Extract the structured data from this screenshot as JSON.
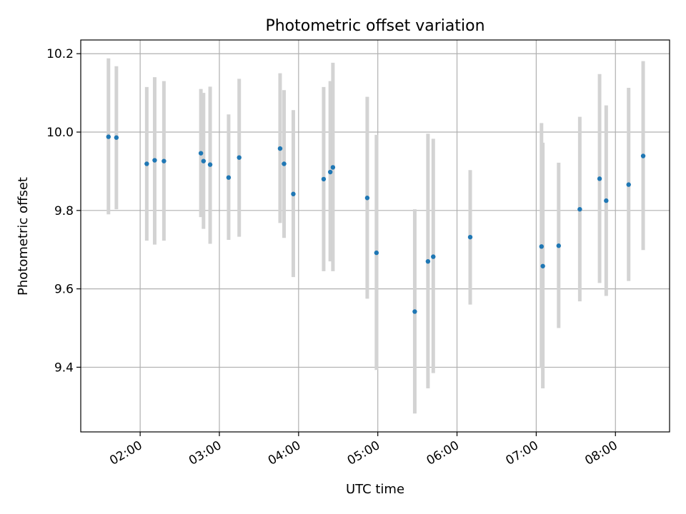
{
  "chart_data": {
    "type": "scatter",
    "title": "Photometric offset variation",
    "xlabel": "UTC time",
    "ylabel": "Photometric offset",
    "x_unit": "UTC time of day",
    "xlim": [
      "01:15",
      "08:41"
    ],
    "ylim": [
      9.235,
      10.235
    ],
    "grid": true,
    "x_ticks": [
      "02:00",
      "03:00",
      "04:00",
      "05:00",
      "06:00",
      "07:00",
      "08:00"
    ],
    "y_ticks": [
      "9.4",
      "9.6",
      "9.8",
      "10.0",
      "10.2"
    ],
    "colors": {
      "point": "#1f77b4",
      "error_bar": "#d3d3d3"
    },
    "points": [
      {
        "x": "01:36",
        "y": 9.988,
        "ylow": 9.79,
        "yhigh": 10.188
      },
      {
        "x": "01:42",
        "y": 9.986,
        "ylow": 9.803,
        "yhigh": 10.168
      },
      {
        "x": "02:05",
        "y": 9.919,
        "ylow": 9.723,
        "yhigh": 10.115
      },
      {
        "x": "02:11",
        "y": 9.928,
        "ylow": 9.713,
        "yhigh": 10.14
      },
      {
        "x": "02:18",
        "y": 9.926,
        "ylow": 9.723,
        "yhigh": 10.13
      },
      {
        "x": "02:46",
        "y": 9.946,
        "ylow": 9.783,
        "yhigh": 10.11
      },
      {
        "x": "02:48",
        "y": 9.926,
        "ylow": 9.753,
        "yhigh": 10.1
      },
      {
        "x": "02:53",
        "y": 9.917,
        "ylow": 9.715,
        "yhigh": 10.116
      },
      {
        "x": "03:07",
        "y": 9.884,
        "ylow": 9.725,
        "yhigh": 10.045
      },
      {
        "x": "03:15",
        "y": 9.935,
        "ylow": 9.733,
        "yhigh": 10.136
      },
      {
        "x": "03:46",
        "y": 9.958,
        "ylow": 9.768,
        "yhigh": 10.15
      },
      {
        "x": "03:49",
        "y": 9.919,
        "ylow": 9.73,
        "yhigh": 10.107
      },
      {
        "x": "03:56",
        "y": 9.842,
        "ylow": 9.63,
        "yhigh": 10.056
      },
      {
        "x": "04:19",
        "y": 9.88,
        "ylow": 9.645,
        "yhigh": 10.115
      },
      {
        "x": "04:24",
        "y": 9.898,
        "ylow": 9.67,
        "yhigh": 10.13
      },
      {
        "x": "04:26",
        "y": 9.91,
        "ylow": 9.645,
        "yhigh": 10.177
      },
      {
        "x": "04:52",
        "y": 9.832,
        "ylow": 9.575,
        "yhigh": 10.09
      },
      {
        "x": "04:59",
        "y": 9.692,
        "ylow": 9.393,
        "yhigh": 9.993
      },
      {
        "x": "05:28",
        "y": 9.542,
        "ylow": 9.282,
        "yhigh": 9.803
      },
      {
        "x": "05:38",
        "y": 9.67,
        "ylow": 9.346,
        "yhigh": 9.996
      },
      {
        "x": "05:42",
        "y": 9.682,
        "ylow": 9.385,
        "yhigh": 9.983
      },
      {
        "x": "06:10",
        "y": 9.732,
        "ylow": 9.56,
        "yhigh": 9.903
      },
      {
        "x": "07:04",
        "y": 9.708,
        "ylow": 9.398,
        "yhigh": 10.023
      },
      {
        "x": "07:05",
        "y": 9.658,
        "ylow": 9.346,
        "yhigh": 9.973
      },
      {
        "x": "07:17",
        "y": 9.71,
        "ylow": 9.5,
        "yhigh": 9.922
      },
      {
        "x": "07:33",
        "y": 9.803,
        "ylow": 9.568,
        "yhigh": 10.039
      },
      {
        "x": "07:48",
        "y": 9.881,
        "ylow": 9.615,
        "yhigh": 10.148
      },
      {
        "x": "07:53",
        "y": 9.825,
        "ylow": 9.582,
        "yhigh": 10.068
      },
      {
        "x": "08:10",
        "y": 9.866,
        "ylow": 9.62,
        "yhigh": 10.113
      },
      {
        "x": "08:21",
        "y": 9.939,
        "ylow": 9.699,
        "yhigh": 10.181
      }
    ]
  }
}
